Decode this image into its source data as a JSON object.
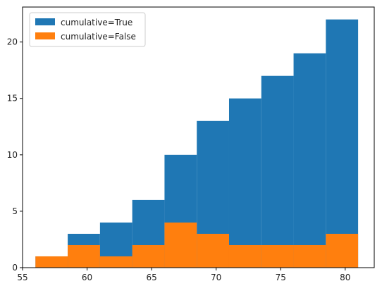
{
  "chart_data": {
    "type": "bar",
    "histogram": true,
    "bin_edges": [
      56.0,
      58.5,
      61.0,
      63.5,
      66.0,
      68.5,
      71.0,
      73.5,
      76.0,
      78.5,
      81.0
    ],
    "series": [
      {
        "name": "cumulative=True",
        "values": [
          1,
          3,
          4,
          6,
          10,
          13,
          15,
          17,
          19,
          22
        ],
        "color": "#1f77b4"
      },
      {
        "name": "cumulative=False",
        "values": [
          1,
          2,
          1,
          2,
          4,
          3,
          2,
          2,
          2,
          3
        ],
        "color": "#ff7f0e"
      }
    ],
    "xlim": [
      55,
      82.25
    ],
    "ylim": [
      0,
      23.1
    ],
    "xticks": [
      55,
      60,
      65,
      70,
      75,
      80
    ],
    "yticks": [
      0,
      5,
      10,
      15,
      20
    ],
    "xtick_labels": [
      "55",
      "60",
      "65",
      "70",
      "75",
      "80"
    ],
    "ytick_labels": [
      "0",
      "5",
      "10",
      "15",
      "20"
    ],
    "legend_position": "upper-left",
    "grid": false,
    "title": "",
    "xlabel": "",
    "ylabel": ""
  }
}
